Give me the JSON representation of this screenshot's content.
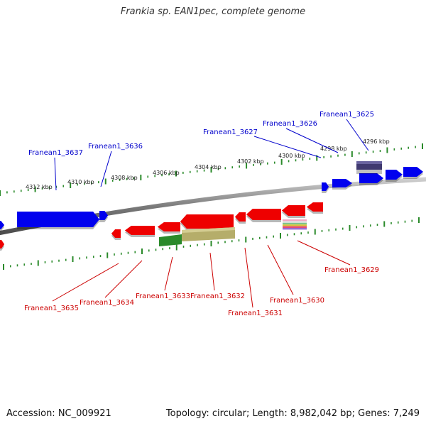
{
  "title": "Frankia sp. EAN1pec, complete genome",
  "footer": {
    "accession": "Accession: NC_009921",
    "summary": "Topology: circular; Length: 8,982,042 bp; Genes: 7,249"
  },
  "colors": {
    "forward_gene": "#0000ee",
    "reverse_gene": "#ee0000",
    "forward_label": "#0000cc",
    "reverse_label": "#cc0000",
    "tick": "#2a8a2a",
    "backbone": "#808080",
    "rrna_dark": "#403a70",
    "green_feature": "#2a8a2a",
    "khaki_feature": "#b5ad6a"
  },
  "kbp_labels": [
    "4312 kbp",
    "4310 kbp",
    "4308 kbp",
    "4306 kbp",
    "4304 kbp",
    "4302 kbp",
    "4300 kbp",
    "4298 kbp",
    "4296 kbp"
  ],
  "forward_genes": [
    "Franean1_3637",
    "Franean1_3636",
    "Franean1_3627",
    "Franean1_3626",
    "Franean1_3625"
  ],
  "reverse_genes": [
    "Franean1_3635",
    "Franean1_3634",
    "Franean1_3633",
    "Franean1_3632",
    "Franean1_3631",
    "Franean1_3630",
    "Franean1_3629"
  ]
}
